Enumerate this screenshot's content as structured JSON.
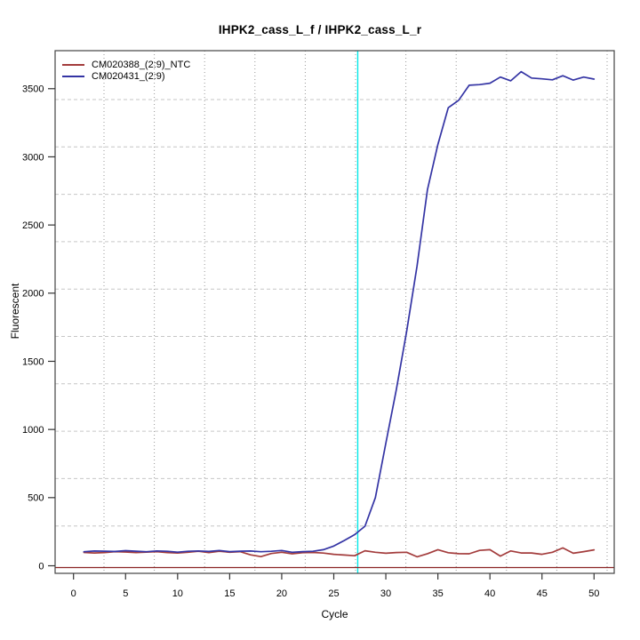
{
  "chart_data": {
    "type": "line",
    "title": "IHPK2_cass_L_f / IHPK2_cass_L_r",
    "xlabel": "Cycle",
    "ylabel": "Fluorescent",
    "x_ticks": [
      0,
      5,
      10,
      15,
      20,
      25,
      30,
      35,
      40,
      45,
      50
    ],
    "y_ticks": [
      0,
      500,
      1000,
      1500,
      2000,
      2500,
      3000,
      3500
    ],
    "xlim": [
      0,
      52
    ],
    "ylim": [
      -60,
      3800
    ],
    "grid": true,
    "legend_position": "top-left",
    "x": [
      1,
      2,
      3,
      4,
      5,
      6,
      7,
      8,
      9,
      10,
      11,
      12,
      13,
      14,
      15,
      16,
      17,
      18,
      19,
      20,
      21,
      22,
      23,
      24,
      25,
      26,
      27,
      28,
      29,
      30,
      31,
      32,
      33,
      34,
      35,
      36,
      37,
      38,
      39,
      40,
      41,
      42,
      43,
      44,
      45,
      46,
      47,
      48,
      49,
      50
    ],
    "series": [
      {
        "name": "CM020388_(2:9)_NTC",
        "color": "#a33c3c",
        "values": [
          98,
          94,
          97,
          104,
          101,
          97,
          100,
          104,
          97,
          94,
          99,
          106,
          97,
          107,
          99,
          104,
          80,
          67,
          90,
          99,
          88,
          96,
          98,
          93,
          84,
          79,
          74,
          110,
          99,
          92,
          97,
          99,
          66,
          89,
          118,
          96,
          89,
          88,
          113,
          118,
          71,
          109,
          94,
          94,
          84,
          99,
          131,
          92,
          104,
          117
        ]
      },
      {
        "name": "CM020431_(2:9)",
        "color": "#3434a4",
        "values": [
          103,
          108,
          107,
          105,
          111,
          107,
          103,
          109,
          106,
          100,
          106,
          109,
          105,
          112,
          104,
          107,
          108,
          103,
          106,
          112,
          99,
          104,
          106,
          118,
          145,
          185,
          228,
          290,
          500,
          900,
          1290,
          1720,
          2200,
          2760,
          3090,
          3360,
          3415,
          3525,
          3530,
          3540,
          3585,
          3558,
          3625,
          3578,
          3572,
          3565,
          3595,
          3563,
          3585,
          3570
        ]
      }
    ],
    "threshold_line": {
      "orientation": "vertical",
      "x": 27.3,
      "color": "#00e8e8"
    },
    "zero_line": {
      "orientation": "horizontal",
      "y": 0,
      "color": "#8b2424"
    }
  }
}
